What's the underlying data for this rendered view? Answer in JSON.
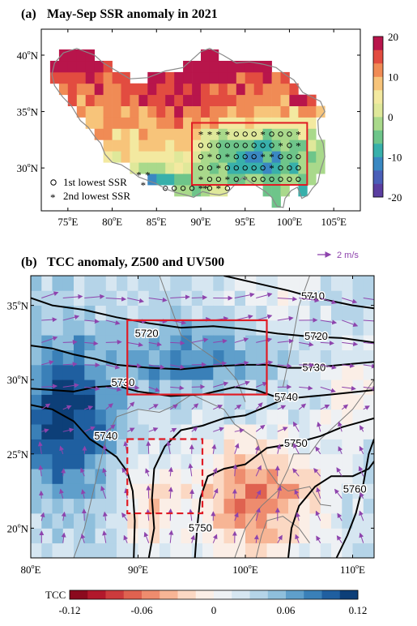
{
  "chart_data": [
    {
      "type": "heatmap",
      "panel": "(a)",
      "title": "May-Sep SSR anomaly in 2021",
      "x_ticks": [
        {
          "v": 75,
          "label": "75°E"
        },
        {
          "v": 80,
          "label": "80°E"
        },
        {
          "v": 85,
          "label": "85°E"
        },
        {
          "v": 90,
          "label": "90°E"
        },
        {
          "v": 95,
          "label": "95°E"
        },
        {
          "v": 100,
          "label": "100°E"
        },
        {
          "v": 105,
          "label": "105°E"
        }
      ],
      "y_ticks": [
        {
          "v": 30,
          "label": "30°N"
        },
        {
          "v": 35,
          "label": "35°N"
        },
        {
          "v": 40,
          "label": "40°N"
        }
      ],
      "xlim": [
        72,
        108
      ],
      "ylim": [
        26.2,
        42.3
      ],
      "colorbar": {
        "ticks": [
          20,
          10,
          0,
          -10,
          -20
        ],
        "range": [
          -20,
          20
        ]
      },
      "legend": [
        {
          "symbol": "○",
          "label": "1st lowest SSR"
        },
        {
          "symbol": "*",
          "label": "2nd lowest SSR"
        }
      ],
      "box": {
        "lon": [
          89,
          102
        ],
        "lat": [
          28.5,
          34
        ]
      },
      "colors": [
        "#5b3ea0",
        "#4a5fb8",
        "#3a88c2",
        "#38b0ab",
        "#6ec58a",
        "#a9d98b",
        "#dfe89a",
        "#f3e9a0",
        "#f7c47a",
        "#f08b55",
        "#e24c40",
        "#b8154b"
      ]
    },
    {
      "type": "heatmap",
      "panel": "(b)",
      "title": "TCC anomaly, Z500 and UV500",
      "x_ticks": [
        {
          "v": 80,
          "label": "80°E"
        },
        {
          "v": 90,
          "label": "90°E"
        },
        {
          "v": 100,
          "label": "100°E"
        },
        {
          "v": 110,
          "label": "110°E"
        }
      ],
      "y_ticks": [
        {
          "v": 20,
          "label": "20°N"
        },
        {
          "v": 25,
          "label": "25°N"
        },
        {
          "v": 30,
          "label": "30°N"
        },
        {
          "v": 35,
          "label": "35°N"
        }
      ],
      "xlim": [
        80,
        112
      ],
      "ylim": [
        18,
        37
      ],
      "colorbar": {
        "label": "TCC",
        "ticks": [
          {
            "v": -0.12,
            "label": "-0.12"
          },
          {
            "v": -0.06,
            "label": "-0.06"
          },
          {
            "v": 0,
            "label": "0"
          },
          {
            "v": 0.06,
            "label": "0.06"
          },
          {
            "v": 0.12,
            "label": "0.12"
          }
        ],
        "range": [
          -0.12,
          0.12
        ]
      },
      "vector_key": "2 m/s",
      "contour_labels": [
        {
          "text": "5710",
          "lon": 106.3,
          "lat": 35.6
        },
        {
          "text": "5720",
          "lon": 90.8,
          "lat": 33.1
        },
        {
          "text": "5720",
          "lon": 106.6,
          "lat": 32.9
        },
        {
          "text": "5730",
          "lon": 88.6,
          "lat": 29.8
        },
        {
          "text": "5730",
          "lon": 106.4,
          "lat": 30.8
        },
        {
          "text": "5740",
          "lon": 87.0,
          "lat": 26.2
        },
        {
          "text": "5740",
          "lon": 103.8,
          "lat": 28.8
        },
        {
          "text": "5750",
          "lon": 104.7,
          "lat": 25.7
        },
        {
          "text": "5750",
          "lon": 95.8,
          "lat": 20.0
        },
        {
          "text": "5760",
          "lon": 110.2,
          "lat": 22.6
        }
      ],
      "box_solid": {
        "lon": [
          89,
          102
        ],
        "lat": [
          29,
          34
        ]
      },
      "box_dashed": {
        "lon": [
          89,
          96
        ],
        "lat": [
          21,
          26
        ]
      },
      "colors": [
        "#8b0a1e",
        "#b2182b",
        "#cc3b3d",
        "#df6250",
        "#ee8c6e",
        "#f7b595",
        "#fbd8c3",
        "#fbeee6",
        "#eef1f4",
        "#d6e6f1",
        "#b5d4e8",
        "#8fbfdc",
        "#5f9fcb",
        "#3a80b8",
        "#1f5fa0",
        "#0d3f78"
      ]
    }
  ]
}
